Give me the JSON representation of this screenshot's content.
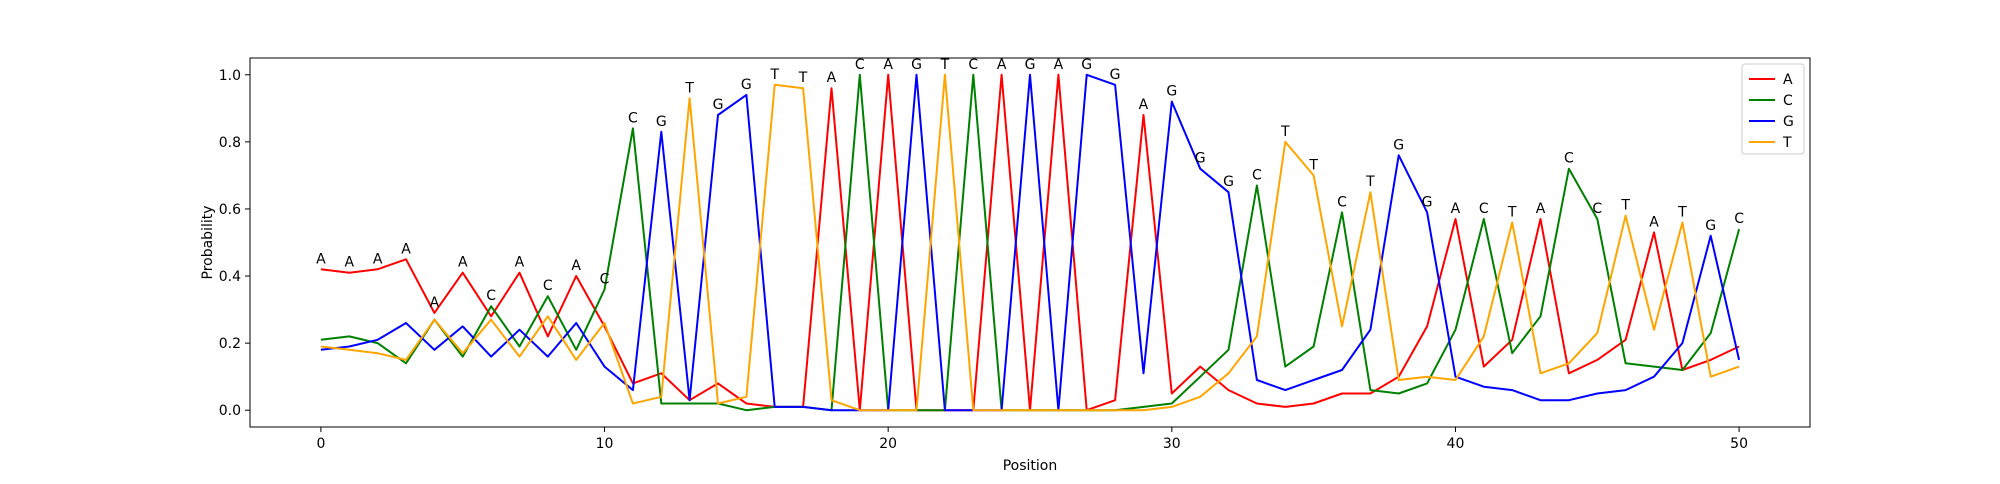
{
  "chart_data": {
    "type": "line",
    "title": "",
    "xlabel": "Position",
    "ylabel": "Probability",
    "xlim": [
      -2.5,
      52.5
    ],
    "ylim": [
      -0.05,
      1.05
    ],
    "xticks": [
      0,
      10,
      20,
      30,
      40,
      50
    ],
    "yticks": [
      0.0,
      0.2,
      0.4,
      0.6,
      0.8,
      1.0
    ],
    "grid": false,
    "legend_position": "top-right",
    "x": [
      0,
      1,
      2,
      3,
      4,
      5,
      6,
      7,
      8,
      9,
      10,
      11,
      12,
      13,
      14,
      15,
      16,
      17,
      18,
      19,
      20,
      21,
      22,
      23,
      24,
      25,
      26,
      27,
      28,
      29,
      30,
      31,
      32,
      33,
      34,
      35,
      36,
      37,
      38,
      39,
      40,
      41,
      42,
      43,
      44,
      45,
      46,
      47,
      48,
      49,
      50
    ],
    "series": [
      {
        "name": "A",
        "color": "#ff0000",
        "values": [
          0.42,
          0.41,
          0.42,
          0.45,
          0.29,
          0.41,
          0.28,
          0.41,
          0.22,
          0.4,
          0.25,
          0.08,
          0.11,
          0.03,
          0.08,
          0.02,
          0.01,
          0.01,
          0.96,
          0.0,
          1.0,
          0.0,
          0.0,
          0.0,
          1.0,
          0.0,
          1.0,
          0.0,
          0.03,
          0.88,
          0.05,
          0.13,
          0.06,
          0.02,
          0.01,
          0.02,
          0.05,
          0.05,
          0.1,
          0.25,
          0.57,
          0.13,
          0.21,
          0.57,
          0.11,
          0.15,
          0.21,
          0.53,
          0.12,
          0.15,
          0.19
        ]
      },
      {
        "name": "C",
        "color": "#008000",
        "values": [
          0.21,
          0.22,
          0.2,
          0.14,
          0.27,
          0.16,
          0.31,
          0.19,
          0.34,
          0.18,
          0.36,
          0.84,
          0.02,
          0.02,
          0.02,
          0.0,
          0.01,
          0.01,
          0.0,
          1.0,
          0.0,
          0.0,
          0.0,
          1.0,
          0.0,
          0.0,
          0.0,
          0.0,
          0.0,
          0.01,
          0.02,
          0.1,
          0.18,
          0.67,
          0.13,
          0.19,
          0.59,
          0.06,
          0.05,
          0.08,
          0.24,
          0.57,
          0.17,
          0.28,
          0.72,
          0.57,
          0.14,
          0.13,
          0.12,
          0.23,
          0.54
        ]
      },
      {
        "name": "G",
        "color": "#0000ff",
        "values": [
          0.18,
          0.19,
          0.21,
          0.26,
          0.18,
          0.25,
          0.16,
          0.24,
          0.16,
          0.26,
          0.13,
          0.06,
          0.83,
          0.03,
          0.88,
          0.94,
          0.01,
          0.01,
          0.0,
          0.0,
          0.0,
          1.0,
          0.0,
          0.0,
          0.0,
          1.0,
          0.0,
          1.0,
          0.97,
          0.11,
          0.92,
          0.72,
          0.65,
          0.09,
          0.06,
          0.09,
          0.12,
          0.24,
          0.76,
          0.59,
          0.1,
          0.07,
          0.06,
          0.03,
          0.03,
          0.05,
          0.06,
          0.1,
          0.2,
          0.52,
          0.15
        ]
      },
      {
        "name": "T",
        "color": "#ffa500",
        "values": [
          0.19,
          0.18,
          0.17,
          0.15,
          0.27,
          0.17,
          0.27,
          0.16,
          0.28,
          0.15,
          0.26,
          0.02,
          0.04,
          0.93,
          0.02,
          0.04,
          0.97,
          0.96,
          0.03,
          0.0,
          0.0,
          0.0,
          1.0,
          0.0,
          0.0,
          0.0,
          0.0,
          0.0,
          0.0,
          0.0,
          0.01,
          0.04,
          0.11,
          0.22,
          0.8,
          0.7,
          0.25,
          0.65,
          0.09,
          0.1,
          0.09,
          0.22,
          0.56,
          0.11,
          0.14,
          0.23,
          0.58,
          0.24,
          0.56,
          0.1,
          0.13
        ]
      }
    ],
    "annotations": [
      "A",
      "A",
      "A",
      "A",
      "A",
      "A",
      "C",
      "A",
      "C",
      "A",
      "C",
      "C",
      "G",
      "T",
      "G",
      "G",
      "T",
      "T",
      "A",
      "C",
      "A",
      "G",
      "T",
      "C",
      "A",
      "G",
      "A",
      "G",
      "G",
      "A",
      "G",
      "G",
      "G",
      "C",
      "T",
      "T",
      "C",
      "T",
      "G",
      "G",
      "A",
      "C",
      "T",
      "A",
      "C",
      "C",
      "T",
      "A",
      "T",
      "G",
      "C"
    ]
  }
}
